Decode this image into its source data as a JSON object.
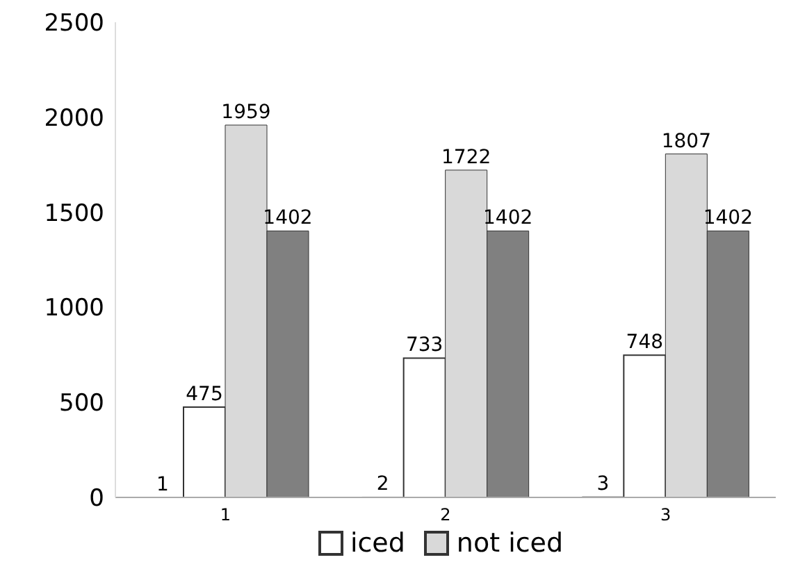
{
  "chart_data": {
    "type": "bar",
    "categories": [
      "1",
      "2",
      "3"
    ],
    "series": [
      {
        "values": [
          1,
          2,
          3
        ],
        "color": "#ffffff"
      },
      {
        "name": "iced",
        "color": "#ffffff",
        "values": [
          475,
          733,
          748
        ]
      },
      {
        "name": "not iced",
        "color": "#d9d9d9",
        "values": [
          1959,
          1722,
          1807
        ]
      },
      {
        "color": "#808080",
        "values": [
          1402,
          1402,
          1402
        ]
      }
    ],
    "ylim": [
      0,
      2500
    ],
    "yticks": [
      0,
      500,
      1000,
      1500,
      2000,
      2500
    ],
    "legend": "bottom",
    "data_labels": true
  }
}
